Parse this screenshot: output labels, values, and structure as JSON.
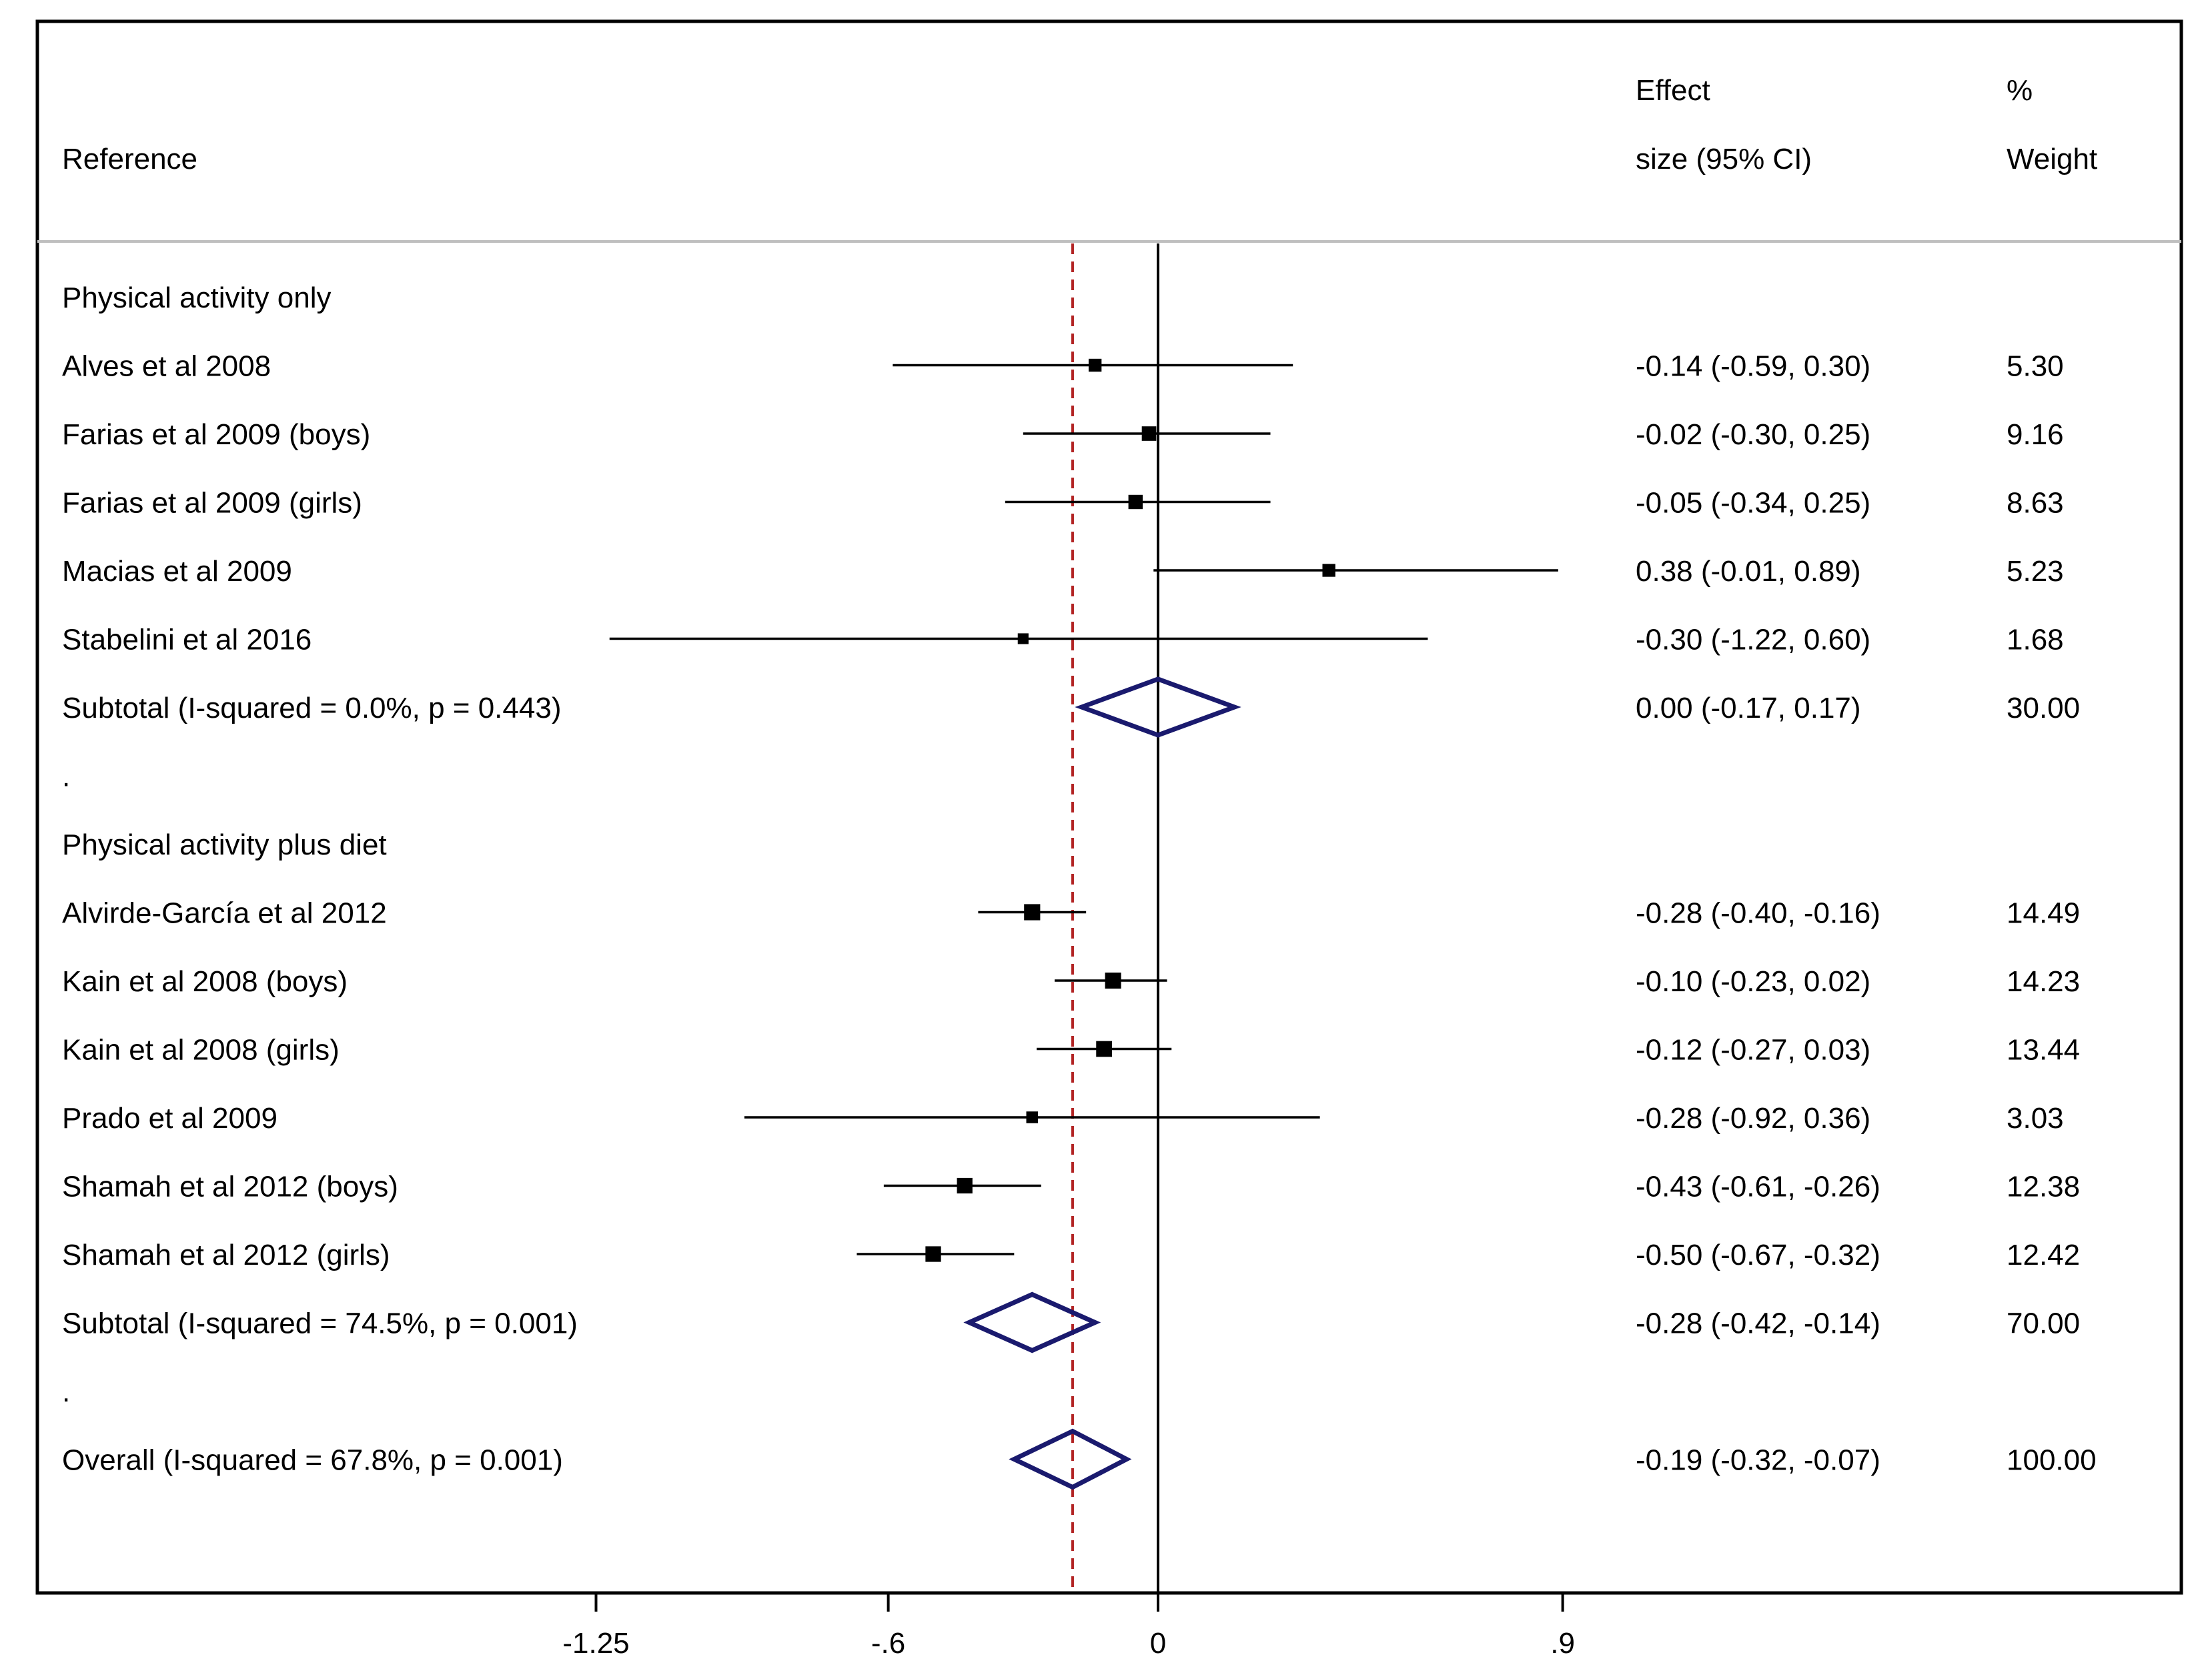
{
  "chart_data": {
    "type": "forest",
    "headers": {
      "reference": "Reference",
      "effect_line1": "Effect",
      "effect_line2": "size (95% CI)",
      "weight_line1": "%",
      "weight_line2": "Weight"
    },
    "null_line": 0,
    "overall_effect_line": -0.19,
    "x_ticks": [
      -1.25,
      -0.6,
      0,
      0.9
    ],
    "x_tick_labels": [
      "-1.25",
      "-.6",
      "0",
      ".9"
    ],
    "rows": [
      {
        "kind": "group",
        "label": "Physical activity only"
      },
      {
        "kind": "study",
        "label": "Alves et al 2008",
        "effect": -0.14,
        "lo": -0.59,
        "hi": 0.3,
        "weight": 5.3,
        "ci_text": "-0.14 (-0.59, 0.30)",
        "weight_text": "5.30"
      },
      {
        "kind": "study",
        "label": "Farias et al 2009 (boys)",
        "effect": -0.02,
        "lo": -0.3,
        "hi": 0.25,
        "weight": 9.16,
        "ci_text": "-0.02 (-0.30, 0.25)",
        "weight_text": "9.16"
      },
      {
        "kind": "study",
        "label": "Farias et al 2009 (girls)",
        "effect": -0.05,
        "lo": -0.34,
        "hi": 0.25,
        "weight": 8.63,
        "ci_text": "-0.05 (-0.34, 0.25)",
        "weight_text": "8.63"
      },
      {
        "kind": "study",
        "label": "Macias et al 2009",
        "effect": 0.38,
        "lo": -0.01,
        "hi": 0.89,
        "weight": 5.23,
        "ci_text": "0.38 (-0.01, 0.89)",
        "weight_text": "5.23"
      },
      {
        "kind": "study",
        "label": "Stabelini et al 2016",
        "effect": -0.3,
        "lo": -1.22,
        "hi": 0.6,
        "weight": 1.68,
        "ci_text": "-0.30 (-1.22, 0.60)",
        "weight_text": "1.68"
      },
      {
        "kind": "subtotal",
        "label": "Subtotal  (I-squared = 0.0%, p = 0.443)",
        "effect": 0.0,
        "lo": -0.17,
        "hi": 0.17,
        "weight": 30.0,
        "ci_text": "0.00 (-0.17, 0.17)",
        "weight_text": "30.00"
      },
      {
        "kind": "spacer",
        "label": "."
      },
      {
        "kind": "group",
        "label": "Physical activity plus diet"
      },
      {
        "kind": "study",
        "label": "Alvirde-García et al 2012",
        "effect": -0.28,
        "lo": -0.4,
        "hi": -0.16,
        "weight": 14.49,
        "ci_text": "-0.28 (-0.40, -0.16)",
        "weight_text": "14.49"
      },
      {
        "kind": "study",
        "label": "Kain et al 2008 (boys)",
        "effect": -0.1,
        "lo": -0.23,
        "hi": 0.02,
        "weight": 14.23,
        "ci_text": "-0.10 (-0.23, 0.02)",
        "weight_text": "14.23"
      },
      {
        "kind": "study",
        "label": "Kain et al 2008 (girls)",
        "effect": -0.12,
        "lo": -0.27,
        "hi": 0.03,
        "weight": 13.44,
        "ci_text": "-0.12 (-0.27, 0.03)",
        "weight_text": "13.44"
      },
      {
        "kind": "study",
        "label": "Prado et al 2009",
        "effect": -0.28,
        "lo": -0.92,
        "hi": 0.36,
        "weight": 3.03,
        "ci_text": "-0.28 (-0.92, 0.36)",
        "weight_text": "3.03"
      },
      {
        "kind": "study",
        "label": "Shamah et al 2012 (boys)",
        "effect": -0.43,
        "lo": -0.61,
        "hi": -0.26,
        "weight": 12.38,
        "ci_text": "-0.43 (-0.61, -0.26)",
        "weight_text": "12.38"
      },
      {
        "kind": "study",
        "label": "Shamah et al 2012 (girls)",
        "effect": -0.5,
        "lo": -0.67,
        "hi": -0.32,
        "weight": 12.42,
        "ci_text": "-0.50 (-0.67, -0.32)",
        "weight_text": "12.42"
      },
      {
        "kind": "subtotal",
        "label": "Subtotal  (I-squared = 74.5%, p = 0.001)",
        "effect": -0.28,
        "lo": -0.42,
        "hi": -0.14,
        "weight": 70.0,
        "ci_text": "-0.28 (-0.42, -0.14)",
        "weight_text": "70.00"
      },
      {
        "kind": "spacer",
        "label": "."
      },
      {
        "kind": "overall",
        "label": "Overall  (I-squared = 67.8%, p = 0.001)",
        "effect": -0.19,
        "lo": -0.32,
        "hi": -0.07,
        "weight": 100.0,
        "ci_text": "-0.19 (-0.32, -0.07)",
        "weight_text": "100.00"
      }
    ],
    "colors": {
      "frame": "#000000",
      "header_rule": "#bfbfbf",
      "effect_line": "#b22222",
      "diamond": "#1a1a6e",
      "marker": "#000000"
    }
  }
}
